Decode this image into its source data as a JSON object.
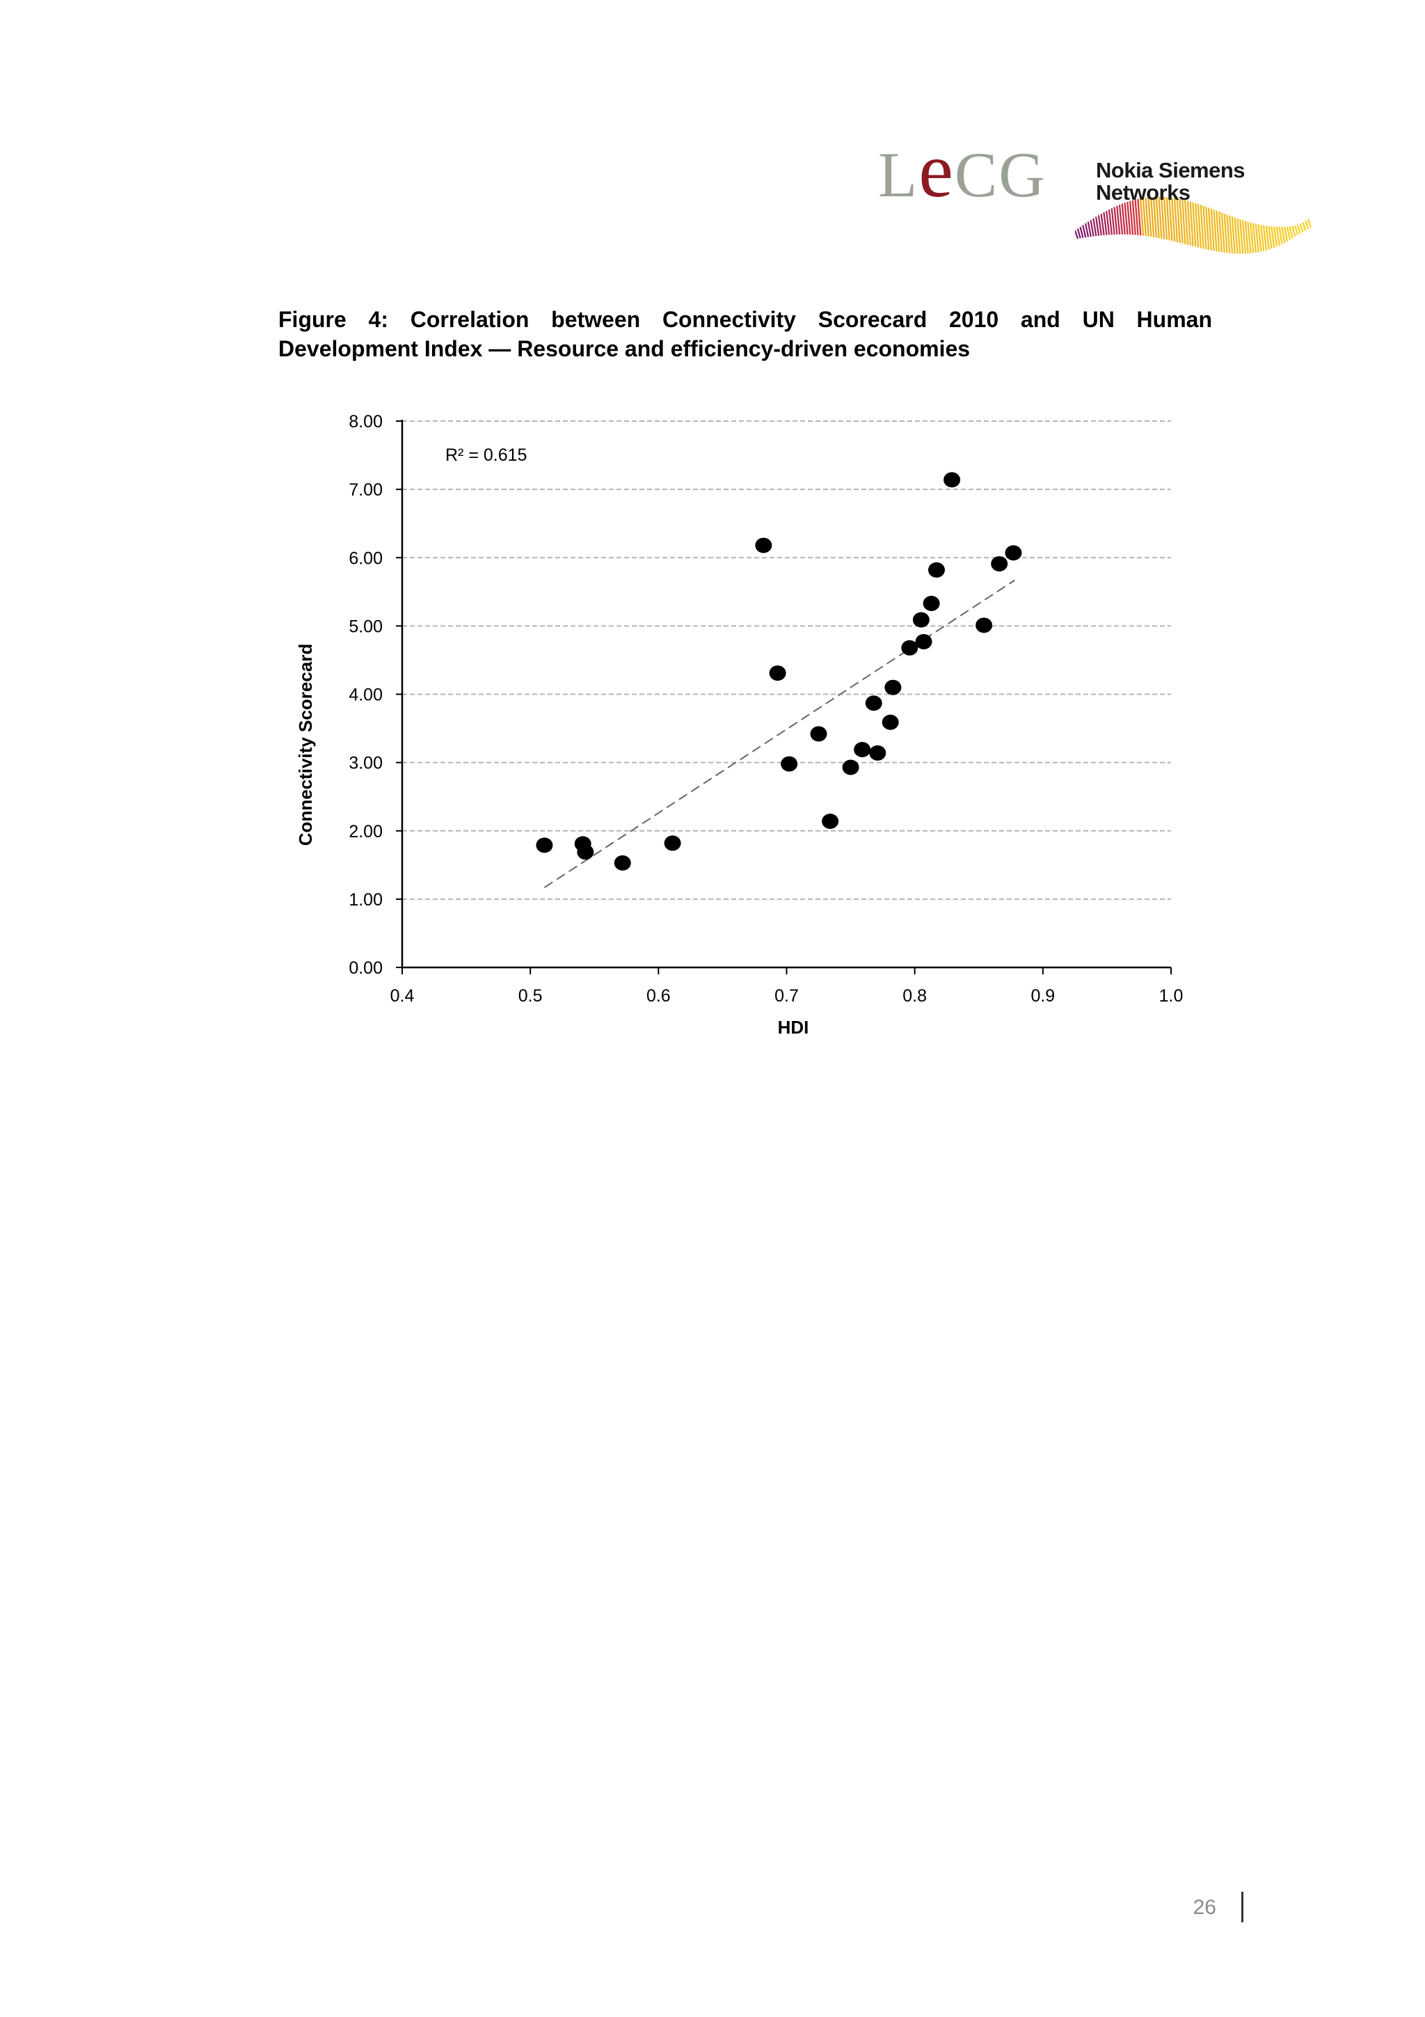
{
  "header": {
    "logo_lecg": "LECG",
    "logo_nsn_line1": "Nokia Siemens",
    "logo_nsn_line2": "Networks"
  },
  "figure": {
    "title": "Figure 4: Correlation between Connectivity Scorecard 2010 and UN Human Development Index — Resource and efficiency-driven economies"
  },
  "chart_data": {
    "type": "scatter",
    "xlabel": "HDI",
    "ylabel": "Connectivity Scorecard",
    "xlim": [
      0.4,
      1.0
    ],
    "ylim": [
      0,
      8
    ],
    "xticks": [
      "0.4",
      "0.5",
      "0.6",
      "0.7",
      "0.8",
      "0.9",
      "1.0"
    ],
    "yticks": [
      "0.00",
      "1.00",
      "2.00",
      "3.00",
      "4.00",
      "5.00",
      "6.00",
      "7.00",
      "8.00"
    ],
    "grid": "horizontal dashed",
    "annotation": "R² = 0.615",
    "trendline": {
      "x": [
        0.511,
        0.878
      ],
      "y": [
        1.17,
        5.67
      ]
    },
    "series": [
      {
        "points": [
          [
            0.511,
            1.79
          ],
          [
            0.541,
            1.81
          ],
          [
            0.543,
            1.69
          ],
          [
            0.572,
            1.53
          ],
          [
            0.611,
            1.82
          ],
          [
            0.682,
            6.18
          ],
          [
            0.693,
            4.31
          ],
          [
            0.702,
            2.98
          ],
          [
            0.725,
            3.42
          ],
          [
            0.734,
            2.14
          ],
          [
            0.75,
            2.93
          ],
          [
            0.759,
            3.19
          ],
          [
            0.768,
            3.87
          ],
          [
            0.771,
            3.14
          ],
          [
            0.781,
            3.59
          ],
          [
            0.783,
            4.1
          ],
          [
            0.796,
            4.68
          ],
          [
            0.805,
            5.09
          ],
          [
            0.807,
            4.77
          ],
          [
            0.813,
            5.33
          ],
          [
            0.817,
            5.82
          ],
          [
            0.829,
            7.14
          ],
          [
            0.854,
            5.01
          ],
          [
            0.866,
            5.91
          ],
          [
            0.877,
            6.07
          ]
        ]
      }
    ]
  },
  "footer": {
    "page_number": "26"
  }
}
